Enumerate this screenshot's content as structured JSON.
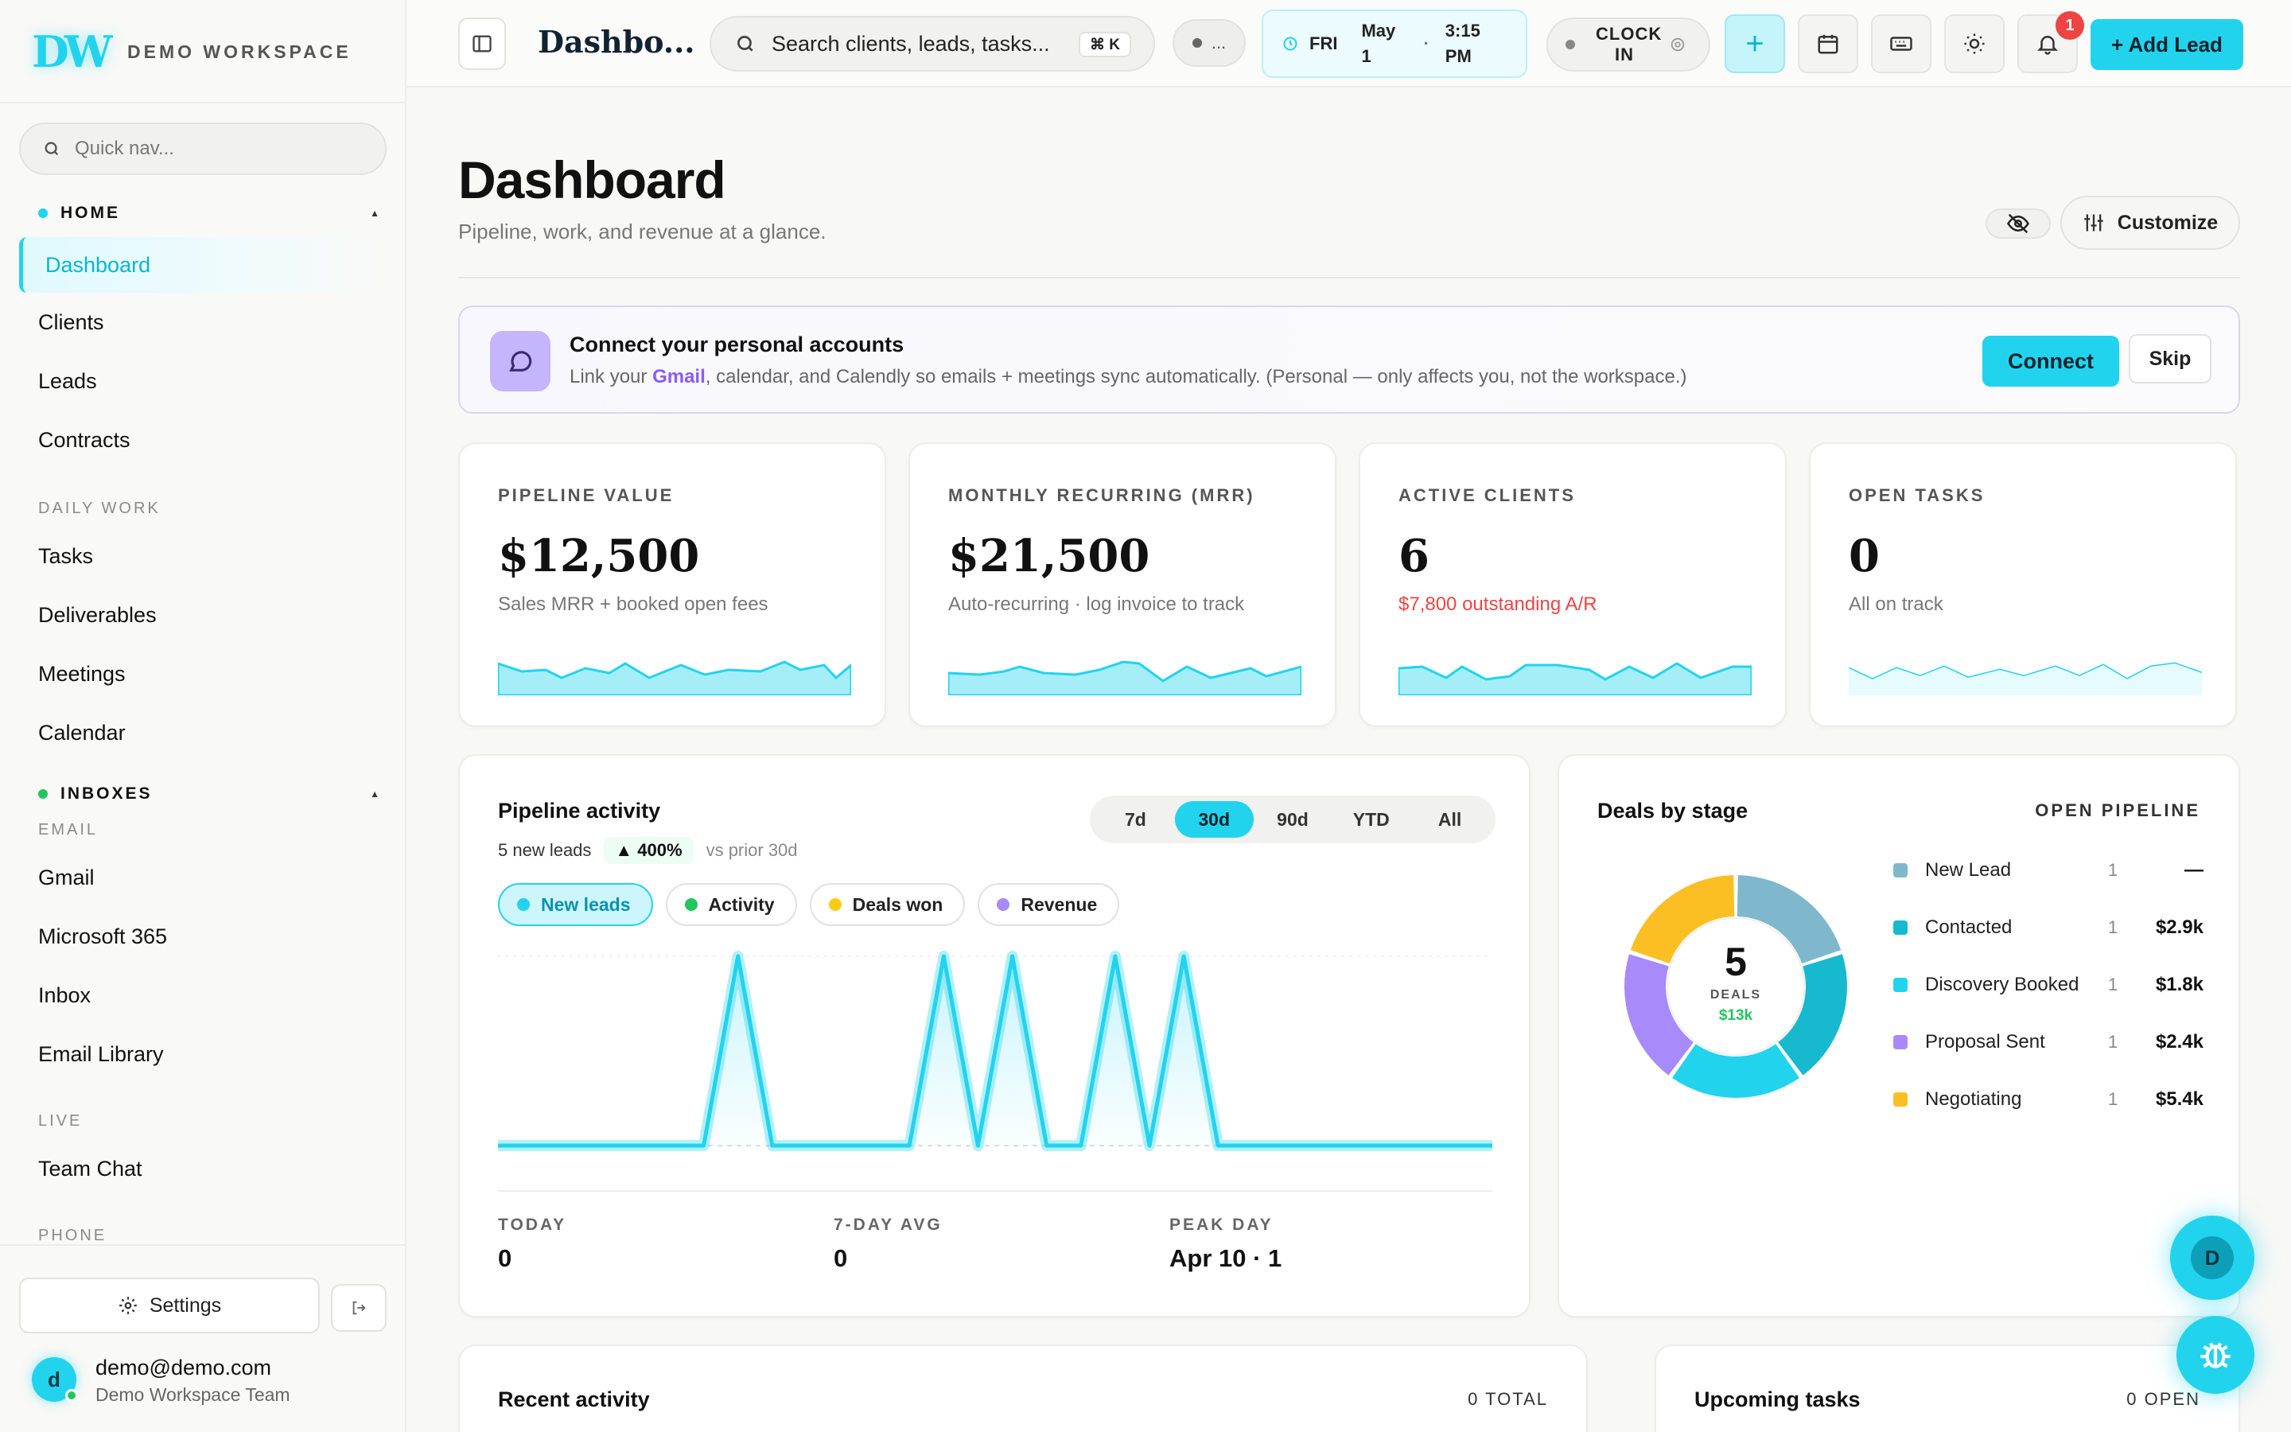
{
  "brand": {
    "logo": "DW",
    "name": "DEMO WORKSPACE"
  },
  "sidebar": {
    "quick_nav_placeholder": "Quick nav...",
    "home_label": "HOME",
    "active_item": "Dashboard",
    "home_items": [
      "Clients",
      "Leads",
      "Contracts"
    ],
    "daily_work_label": "DAILY WORK",
    "daily_items": [
      "Tasks",
      "Deliverables",
      "Meetings",
      "Calendar"
    ],
    "inboxes_label": "INBOXES",
    "email_label": "EMAIL",
    "email_items": [
      "Gmail",
      "Microsoft 365",
      "Inbox",
      "Email Library"
    ],
    "live_label": "LIVE",
    "live_items": [
      "Team Chat"
    ],
    "phone_label": "PHONE",
    "settings_label": "Settings",
    "user": {
      "initial": "d",
      "email": "demo@demo.com",
      "team": "Demo Workspace Team"
    },
    "colors": {
      "home_dot": "#22d3ee",
      "inboxes_dot": "#22c55e"
    }
  },
  "topbar": {
    "title": "Dashbo...",
    "search_placeholder": "Search clients, leads, tasks...",
    "search_shortcut": "⌘ K",
    "status_pill": "...",
    "day": "FRI",
    "date": "May 1",
    "time": "3:15 PM",
    "clock_label": "CLOCK IN",
    "notification_count": "1",
    "add_lead_label": "+ Add Lead"
  },
  "page": {
    "title": "Dashboard",
    "subtitle": "Pipeline, work, and revenue at a glance.",
    "customize_label": "Customize"
  },
  "banner": {
    "title": "Connect your personal accounts",
    "text_before": "Link your ",
    "text_highlight": "Gmail",
    "text_after": ", calendar, and Calendly so emails + meetings sync automatically. (Personal — only affects you, not the workspace.)",
    "connect_label": "Connect",
    "skip_label": "Skip"
  },
  "kpis": [
    {
      "label": "PIPELINE VALUE",
      "value": "$12,500",
      "sub": "Sales MRR + booked open fees"
    },
    {
      "label": "MONTHLY RECURRING (MRR)",
      "value": "$21,500",
      "sub": "Auto-recurring · log invoice to track"
    },
    {
      "label": "ACTIVE CLIENTS",
      "value": "6",
      "sub": "$7,800 outstanding A/R"
    },
    {
      "label": "OPEN TASKS",
      "value": "0",
      "sub": "All on track"
    }
  ],
  "pipeline_activity": {
    "title": "Pipeline activity",
    "new_leads_text": "5 new leads",
    "change": "▲ 400%",
    "compare": "vs prior 30d",
    "ranges": [
      "7d",
      "30d",
      "90d",
      "YTD",
      "All"
    ],
    "selected_range": "30d",
    "legend": [
      {
        "label": "New leads",
        "color": "#22d3ee",
        "active": true
      },
      {
        "label": "Activity",
        "color": "#22c55e",
        "active": false
      },
      {
        "label": "Deals won",
        "color": "#facc15",
        "active": false
      },
      {
        "label": "Revenue",
        "color": "#a78bfa",
        "active": false
      }
    ],
    "stats": [
      {
        "label": "TODAY",
        "value": "0"
      },
      {
        "label": "7-DAY AVG",
        "value": "0"
      },
      {
        "label": "PEAK DAY",
        "value": "Apr 10 · 1"
      }
    ]
  },
  "deals_by_stage": {
    "title": "Deals by stage",
    "tag": "OPEN PIPELINE",
    "total": "5",
    "total_label": "DEALS",
    "total_amount": "$13k",
    "stages": [
      {
        "name": "New Lead",
        "count": "1",
        "amount": "—",
        "color": "#7fb8cc"
      },
      {
        "name": "Contacted",
        "count": "1",
        "amount": "$2.9k",
        "color": "#17b9cf"
      },
      {
        "name": "Discovery Booked",
        "count": "1",
        "amount": "$1.8k",
        "color": "#22d3ee"
      },
      {
        "name": "Proposal Sent",
        "count": "1",
        "amount": "$2.4k",
        "color": "#a78bfa"
      },
      {
        "name": "Negotiating",
        "count": "1",
        "amount": "$5.4k",
        "color": "#fbbf24"
      }
    ]
  },
  "recent_activity": {
    "title": "Recent activity",
    "tag": "0 TOTAL"
  },
  "upcoming_tasks": {
    "title": "Upcoming tasks",
    "tag": "0 OPEN"
  },
  "fab": {
    "initial": "D"
  },
  "chart_data": {
    "type": "line",
    "title": "Pipeline activity",
    "series": [
      {
        "name": "New leads",
        "values": [
          0,
          0,
          0,
          0,
          0,
          0,
          0,
          1,
          0,
          0,
          0,
          0,
          0,
          1,
          0,
          1,
          0,
          0,
          1,
          0,
          1,
          0,
          0,
          0,
          0,
          0,
          0,
          0,
          0,
          0
        ]
      }
    ],
    "ylim": [
      0,
      1
    ],
    "grid": false
  }
}
